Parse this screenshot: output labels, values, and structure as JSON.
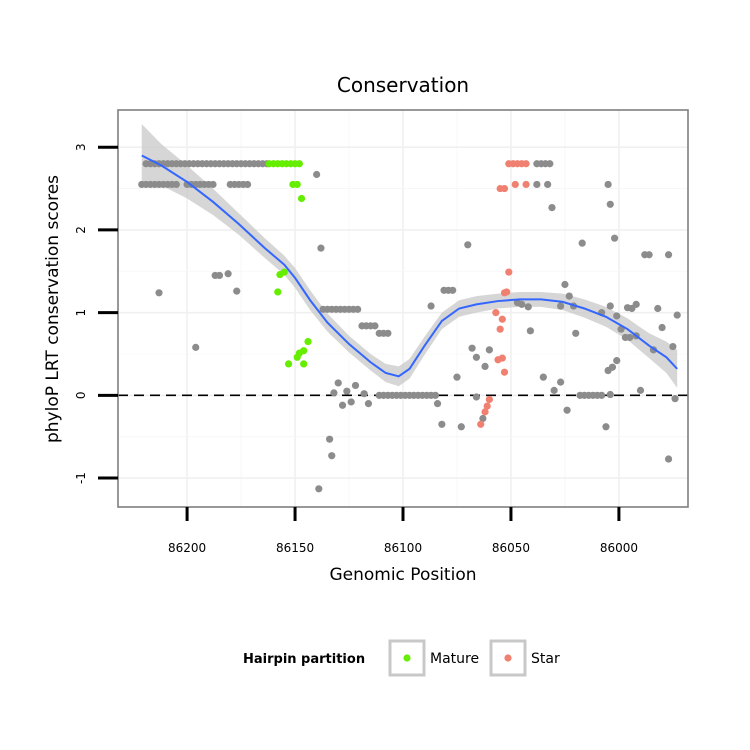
{
  "chart_data": {
    "type": "scatter",
    "title": "Conservation",
    "xlabel": "Genomic Position",
    "ylabel": "phyloP LRT conservation scores",
    "x_reversed": true,
    "xlim": [
      86232,
      85968
    ],
    "ylim": [
      -1.35,
      3.45
    ],
    "x_ticks": [
      86200,
      86150,
      86100,
      86050,
      86000
    ],
    "x_tick_labels": [
      "86200",
      "86150",
      "86100",
      "86050",
      "86000"
    ],
    "y_ticks": [
      -1,
      0,
      1,
      2,
      3
    ],
    "y_tick_labels": [
      "-1",
      "0",
      "1",
      "2",
      "3"
    ],
    "grid": true,
    "reference_line": {
      "y": 0,
      "style": "dashed"
    },
    "legend": {
      "title": "Hairpin partition",
      "placement": "bottom",
      "entries": [
        {
          "label": "Mature",
          "color": "#66ee00"
        },
        {
          "label": "Star",
          "color": "#f08070"
        }
      ]
    },
    "colors": {
      "Other": "#8c8c8c",
      "Mature": "#66ee00",
      "Star": "#f08070",
      "smooth_line": "#3366ff",
      "confidence_band": "#c8c8c8"
    },
    "series": [
      {
        "name": "Other",
        "points": [
          [
            86219,
            2.8
          ],
          [
            86217,
            2.8
          ],
          [
            86215,
            2.8
          ],
          [
            86213,
            2.8
          ],
          [
            86211,
            2.8
          ],
          [
            86209,
            2.8
          ],
          [
            86207,
            2.8
          ],
          [
            86205,
            2.8
          ],
          [
            86203,
            2.8
          ],
          [
            86201,
            2.8
          ],
          [
            86199,
            2.8
          ],
          [
            86197,
            2.8
          ],
          [
            86195,
            2.8
          ],
          [
            86193,
            2.8
          ],
          [
            86191,
            2.8
          ],
          [
            86189,
            2.8
          ],
          [
            86187,
            2.8
          ],
          [
            86185,
            2.8
          ],
          [
            86183,
            2.8
          ],
          [
            86181,
            2.8
          ],
          [
            86179,
            2.8
          ],
          [
            86177,
            2.8
          ],
          [
            86175,
            2.8
          ],
          [
            86173,
            2.8
          ],
          [
            86171,
            2.8
          ],
          [
            86169,
            2.8
          ],
          [
            86167,
            2.8
          ],
          [
            86165,
            2.8
          ],
          [
            86163,
            2.8
          ],
          [
            86221,
            2.55
          ],
          [
            86219,
            2.55
          ],
          [
            86217,
            2.55
          ],
          [
            86215,
            2.55
          ],
          [
            86213,
            2.55
          ],
          [
            86211,
            2.55
          ],
          [
            86209,
            2.55
          ],
          [
            86207,
            2.55
          ],
          [
            86205,
            2.55
          ],
          [
            86200,
            2.55
          ],
          [
            86198,
            2.55
          ],
          [
            86196,
            2.55
          ],
          [
            86194,
            2.55
          ],
          [
            86192,
            2.55
          ],
          [
            86190,
            2.55
          ],
          [
            86188,
            2.55
          ],
          [
            86180,
            2.55
          ],
          [
            86178,
            2.55
          ],
          [
            86176,
            2.55
          ],
          [
            86174,
            2.55
          ],
          [
            86172,
            2.55
          ],
          [
            86213,
            1.24
          ],
          [
            86196,
            0.58
          ],
          [
            86187,
            1.45
          ],
          [
            86185,
            1.45
          ],
          [
            86181,
            1.47
          ],
          [
            86177,
            1.26
          ],
          [
            86140,
            2.67
          ],
          [
            86138,
            1.78
          ],
          [
            86139,
            -1.13
          ],
          [
            86134,
            -0.53
          ],
          [
            86133,
            -0.73
          ],
          [
            86137,
            1.04
          ],
          [
            86135,
            1.04
          ],
          [
            86133,
            1.04
          ],
          [
            86131,
            1.04
          ],
          [
            86129,
            1.04
          ],
          [
            86127,
            1.04
          ],
          [
            86125,
            1.04
          ],
          [
            86123,
            1.04
          ],
          [
            86121,
            1.04
          ],
          [
            86119,
            0.84
          ],
          [
            86117,
            0.84
          ],
          [
            86115,
            0.84
          ],
          [
            86113,
            0.84
          ],
          [
            86111,
            0.75
          ],
          [
            86109,
            0.75
          ],
          [
            86107,
            0.75
          ],
          [
            86132,
            0.03
          ],
          [
            86130,
            0.15
          ],
          [
            86128,
            -0.12
          ],
          [
            86126,
            0.05
          ],
          [
            86124,
            -0.08
          ],
          [
            86122,
            0.12
          ],
          [
            86118,
            0.02
          ],
          [
            86116,
            -0.1
          ],
          [
            86111,
            0.0
          ],
          [
            86109,
            0.0
          ],
          [
            86107,
            0.0
          ],
          [
            86105,
            0.0
          ],
          [
            86103,
            0.0
          ],
          [
            86101,
            0.0
          ],
          [
            86099,
            0.0
          ],
          [
            86097,
            0.0
          ],
          [
            86095,
            0.0
          ],
          [
            86093,
            0.0
          ],
          [
            86091,
            0.0
          ],
          [
            86089,
            0.0
          ],
          [
            86087,
            0.0
          ],
          [
            86085,
            0.0
          ],
          [
            86087,
            1.08
          ],
          [
            86084,
            -0.1
          ],
          [
            86081,
            1.27
          ],
          [
            86079,
            1.27
          ],
          [
            86077,
            1.27
          ],
          [
            86075,
            0.22
          ],
          [
            86082,
            -0.35
          ],
          [
            86073,
            -0.38
          ],
          [
            86070,
            1.82
          ],
          [
            86068,
            0.57
          ],
          [
            86066,
            0.46
          ],
          [
            86063,
            -0.28
          ],
          [
            86062,
            0.35
          ],
          [
            86066,
            -0.02
          ],
          [
            86060,
            0.55
          ],
          [
            86047,
            1.12
          ],
          [
            86045,
            1.1
          ],
          [
            86042,
            1.07
          ],
          [
            86041,
            0.78
          ],
          [
            86038,
            2.8
          ],
          [
            86036,
            2.8
          ],
          [
            86034,
            2.8
          ],
          [
            86032,
            2.8
          ],
          [
            86038,
            2.55
          ],
          [
            86033,
            2.55
          ],
          [
            86031,
            2.27
          ],
          [
            86027,
            0.16
          ],
          [
            86024,
            -0.18
          ],
          [
            86035,
            0.22
          ],
          [
            86030,
            0.06
          ],
          [
            86027,
            1.08
          ],
          [
            86025,
            1.34
          ],
          [
            86023,
            1.2
          ],
          [
            86021,
            1.08
          ],
          [
            86020,
            0.75
          ],
          [
            86017,
            1.84
          ],
          [
            86018,
            0.0
          ],
          [
            86016,
            0.0
          ],
          [
            86014,
            0.0
          ],
          [
            86012,
            0.0
          ],
          [
            86010,
            0.0
          ],
          [
            86008,
            0.0
          ],
          [
            86005,
            2.55
          ],
          [
            86004,
            2.31
          ],
          [
            86002,
            1.9
          ],
          [
            86005,
            0.3
          ],
          [
            86003,
            0.34
          ],
          [
            86001,
            0.42
          ],
          [
            86004,
            0.01
          ],
          [
            86006,
            -0.38
          ],
          [
            86008,
            1.0
          ],
          [
            86004,
            1.08
          ],
          [
            86001,
            0.96
          ],
          [
            85999,
            0.8
          ],
          [
            85996,
            1.06
          ],
          [
            85994,
            1.05
          ],
          [
            85992,
            1.1
          ],
          [
            85997,
            0.7
          ],
          [
            85995,
            0.7
          ],
          [
            85992,
            0.72
          ],
          [
            85988,
            1.7
          ],
          [
            85986,
            1.7
          ],
          [
            85990,
            0.06
          ],
          [
            85984,
            0.55
          ],
          [
            85982,
            1.05
          ],
          [
            85980,
            0.82
          ],
          [
            85977,
            1.7
          ],
          [
            85977,
            -0.77
          ],
          [
            85975,
            0.59
          ],
          [
            85974,
            -0.04
          ],
          [
            85973,
            0.97
          ]
        ]
      },
      {
        "name": "Mature",
        "points": [
          [
            86162,
            2.8
          ],
          [
            86160,
            2.8
          ],
          [
            86158,
            2.8
          ],
          [
            86156,
            2.8
          ],
          [
            86154,
            2.8
          ],
          [
            86152,
            2.8
          ],
          [
            86150,
            2.8
          ],
          [
            86148,
            2.8
          ],
          [
            86151,
            2.55
          ],
          [
            86149,
            2.55
          ],
          [
            86147,
            2.38
          ],
          [
            86157,
            1.46
          ],
          [
            86155,
            1.49
          ],
          [
            86158,
            1.25
          ],
          [
            86148,
            0.51
          ],
          [
            86146,
            0.54
          ],
          [
            86144,
            0.65
          ],
          [
            86149,
            0.46
          ],
          [
            86153,
            0.38
          ],
          [
            86146,
            0.38
          ]
        ]
      },
      {
        "name": "Star",
        "points": [
          [
            86051,
            2.8
          ],
          [
            86049,
            2.8
          ],
          [
            86047,
            2.8
          ],
          [
            86045,
            2.8
          ],
          [
            86043,
            2.8
          ],
          [
            86055,
            2.5
          ],
          [
            86053,
            2.5
          ],
          [
            86048,
            2.55
          ],
          [
            86043,
            2.55
          ],
          [
            86051,
            1.49
          ],
          [
            86053,
            1.24
          ],
          [
            86057,
            1.0
          ],
          [
            86055,
            0.8
          ],
          [
            86054,
            0.92
          ],
          [
            86052,
            1.25
          ],
          [
            86054,
            0.45
          ],
          [
            86056,
            0.43
          ],
          [
            86053,
            0.28
          ],
          [
            86060,
            -0.05
          ],
          [
            86062,
            -0.2
          ],
          [
            86064,
            -0.35
          ],
          [
            86061,
            -0.13
          ]
        ]
      }
    ],
    "smooth": {
      "line": [
        [
          86221,
          2.9
        ],
        [
          86212,
          2.78
        ],
        [
          86200,
          2.58
        ],
        [
          86188,
          2.34
        ],
        [
          86176,
          2.07
        ],
        [
          86164,
          1.78
        ],
        [
          86155,
          1.58
        ],
        [
          86150,
          1.42
        ],
        [
          86143,
          1.15
        ],
        [
          86135,
          0.88
        ],
        [
          86125,
          0.62
        ],
        [
          86115,
          0.4
        ],
        [
          86108,
          0.27
        ],
        [
          86102,
          0.23
        ],
        [
          86097,
          0.32
        ],
        [
          86090,
          0.6
        ],
        [
          86082,
          0.9
        ],
        [
          86074,
          1.05
        ],
        [
          86066,
          1.1
        ],
        [
          86056,
          1.14
        ],
        [
          86046,
          1.16
        ],
        [
          86036,
          1.16
        ],
        [
          86026,
          1.13
        ],
        [
          86016,
          1.05
        ],
        [
          86006,
          0.95
        ],
        [
          85996,
          0.8
        ],
        [
          85986,
          0.6
        ],
        [
          85978,
          0.46
        ],
        [
          85973,
          0.32
        ]
      ],
      "upper": [
        [
          86221,
          3.28
        ],
        [
          86212,
          3.04
        ],
        [
          86200,
          2.78
        ],
        [
          86188,
          2.5
        ],
        [
          86176,
          2.2
        ],
        [
          86164,
          1.9
        ],
        [
          86155,
          1.69
        ],
        [
          86150,
          1.54
        ],
        [
          86143,
          1.27
        ],
        [
          86135,
          0.99
        ],
        [
          86125,
          0.72
        ],
        [
          86115,
          0.5
        ],
        [
          86108,
          0.38
        ],
        [
          86102,
          0.35
        ],
        [
          86097,
          0.44
        ],
        [
          86090,
          0.71
        ],
        [
          86082,
          1.0
        ],
        [
          86074,
          1.15
        ],
        [
          86066,
          1.2
        ],
        [
          86056,
          1.23
        ],
        [
          86046,
          1.25
        ],
        [
          86036,
          1.25
        ],
        [
          86026,
          1.23
        ],
        [
          86016,
          1.16
        ],
        [
          86006,
          1.07
        ],
        [
          85996,
          0.93
        ],
        [
          85986,
          0.75
        ],
        [
          85978,
          0.65
        ],
        [
          85973,
          0.55
        ]
      ],
      "lower": [
        [
          86221,
          2.55
        ],
        [
          86212,
          2.54
        ],
        [
          86200,
          2.38
        ],
        [
          86188,
          2.18
        ],
        [
          86176,
          1.94
        ],
        [
          86164,
          1.66
        ],
        [
          86155,
          1.46
        ],
        [
          86150,
          1.3
        ],
        [
          86143,
          1.03
        ],
        [
          86135,
          0.77
        ],
        [
          86125,
          0.52
        ],
        [
          86115,
          0.3
        ],
        [
          86108,
          0.16
        ],
        [
          86102,
          0.11
        ],
        [
          86097,
          0.2
        ],
        [
          86090,
          0.49
        ],
        [
          86082,
          0.8
        ],
        [
          86074,
          0.95
        ],
        [
          86066,
          1.0
        ],
        [
          86056,
          1.05
        ],
        [
          86046,
          1.07
        ],
        [
          86036,
          1.07
        ],
        [
          86026,
          1.03
        ],
        [
          86016,
          0.94
        ],
        [
          86006,
          0.83
        ],
        [
          85996,
          0.67
        ],
        [
          85986,
          0.45
        ],
        [
          85978,
          0.27
        ],
        [
          85973,
          0.09
        ]
      ]
    }
  }
}
